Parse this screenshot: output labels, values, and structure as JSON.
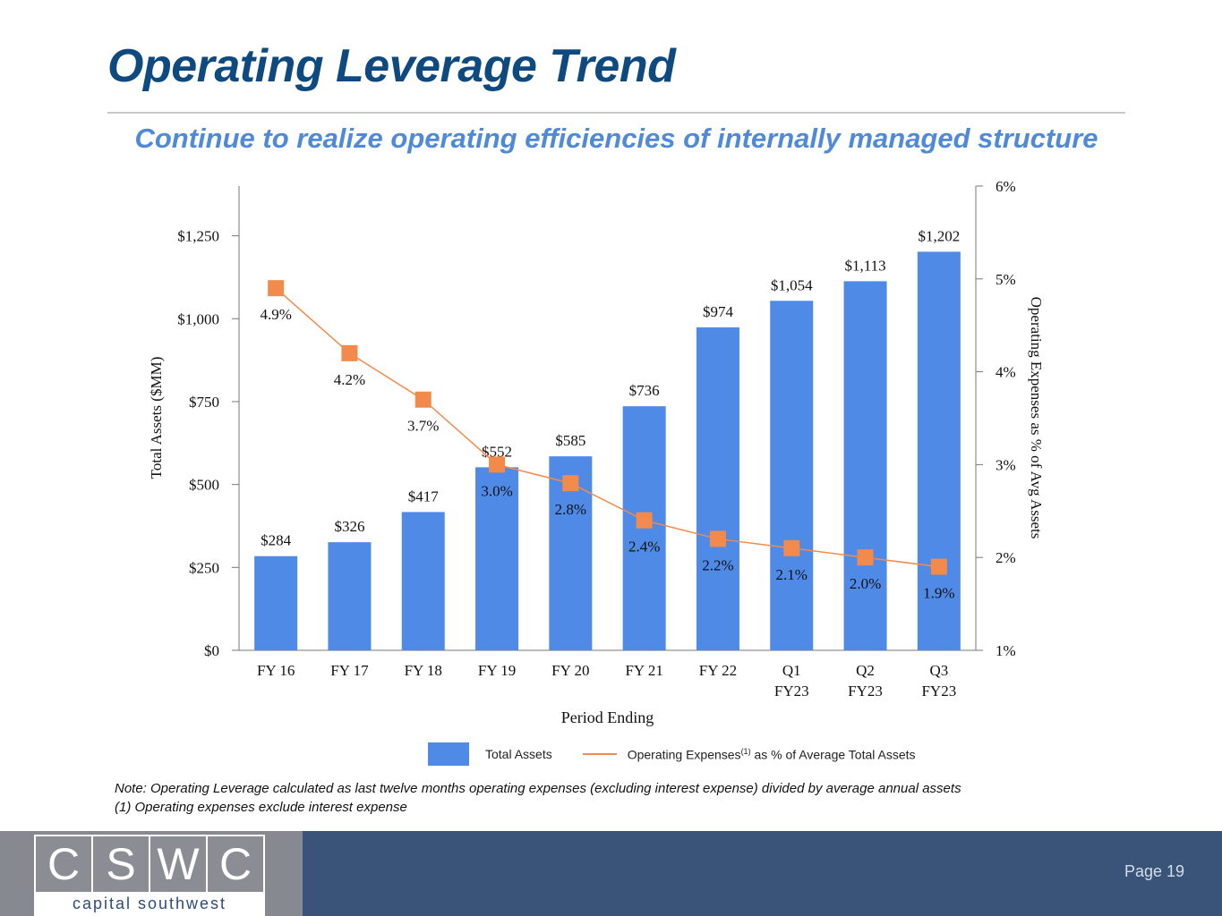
{
  "slide": {
    "title": "Operating Leverage Trend",
    "subtitle": "Continue to realize operating efficiencies of internally managed structure",
    "note_line1": "Note: Operating Leverage calculated as last twelve months operating expenses (excluding interest expense) divided by average annual assets",
    "note_line2": "(1) Operating expenses exclude interest expense",
    "page": "Page 19"
  },
  "logo": {
    "letters": [
      "C",
      "S",
      "W",
      "C"
    ],
    "name": "capital southwest"
  },
  "legend": {
    "bars": "Total Assets",
    "line_prefix": "Operating Expenses",
    "line_sup": "(1)",
    "line_suffix": " as % of Average Total Assets"
  },
  "colors": {
    "bar": "#4f8ae6",
    "line": "#f28a4c",
    "title": "#0e4a80",
    "subtitle": "#4f8ad9",
    "footer": "#3a5479"
  },
  "chart_data": {
    "type": "bar",
    "categories": [
      [
        "FY 16"
      ],
      [
        "FY 17"
      ],
      [
        "FY 18"
      ],
      [
        "FY 19"
      ],
      [
        "FY 20"
      ],
      [
        "FY 21"
      ],
      [
        "FY 22"
      ],
      [
        "Q1",
        "FY23"
      ],
      [
        "Q2",
        "FY23"
      ],
      [
        "Q3",
        "FY23"
      ]
    ],
    "xlabel": "Period Ending",
    "ylabel": "Total Assets ($MM)",
    "y2label": "Operating Expenses as % of Avg Assets",
    "ylim": [
      0,
      1400
    ],
    "yticks": [
      0,
      250,
      500,
      750,
      1000,
      1250
    ],
    "ytick_labels": [
      "$0",
      "$250",
      "$500",
      "$750",
      "$1,000",
      "$1,250"
    ],
    "y2lim": [
      1,
      6
    ],
    "y2ticks": [
      1,
      2,
      3,
      4,
      5,
      6
    ],
    "y2tick_labels": [
      "1%",
      "2%",
      "3%",
      "4%",
      "5%",
      "6%"
    ],
    "series": [
      {
        "type": "bar",
        "axis": "left",
        "values": [
          284,
          326,
          417,
          552,
          585,
          736,
          974,
          1054,
          1113,
          1202
        ],
        "labels": [
          "$284",
          "$326",
          "$417",
          "$552",
          "$585",
          "$736",
          "$974",
          "$1,054",
          "$1,113",
          "$1,202"
        ]
      },
      {
        "type": "line",
        "axis": "right",
        "values": [
          4.9,
          4.2,
          3.7,
          3.0,
          2.8,
          2.4,
          2.2,
          2.1,
          2.0,
          1.9
        ],
        "labels": [
          "4.9%",
          "4.2%",
          "3.7%",
          "3.0%",
          "2.8%",
          "2.4%",
          "2.2%",
          "2.1%",
          "2.0%",
          "1.9%"
        ]
      }
    ],
    "legend_position": "bottom"
  }
}
